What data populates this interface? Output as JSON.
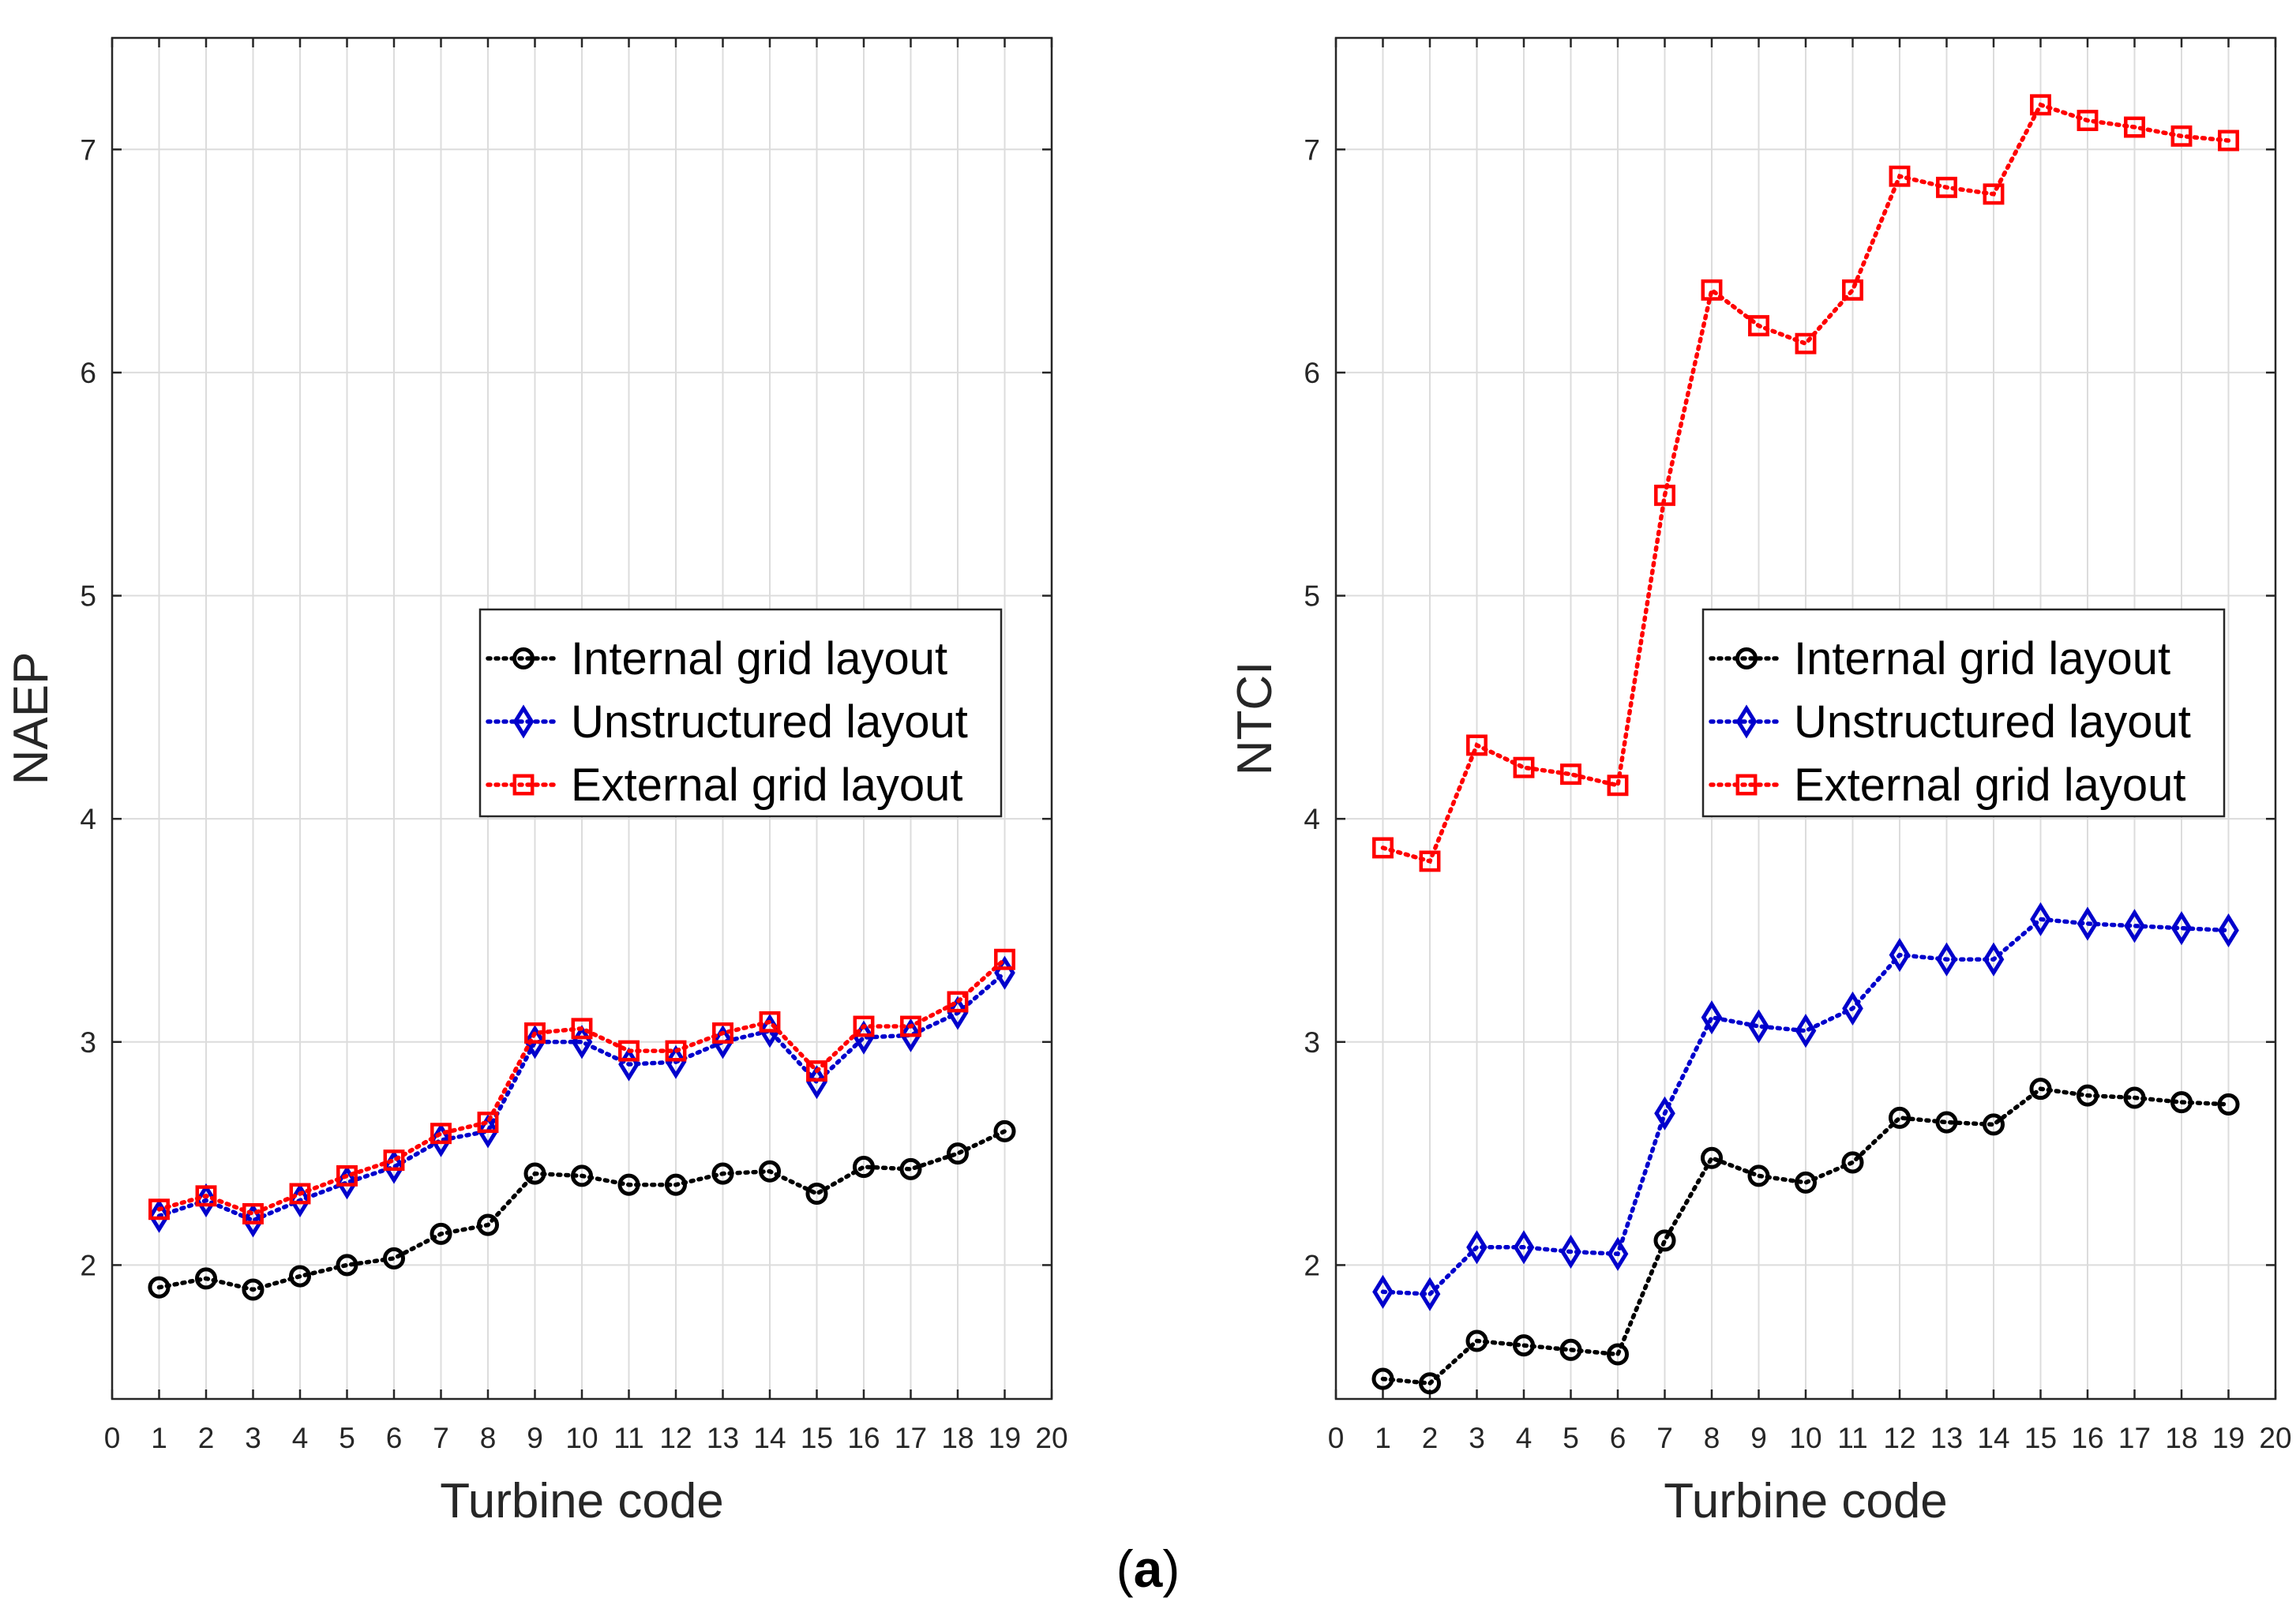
{
  "caption": {
    "open": "(",
    "letter": "a",
    "close": ")"
  },
  "colors": {
    "internal": "#000000",
    "unstructured": "#0000cc",
    "external": "#ff0000",
    "grid": "#dcdcdc",
    "axis": "#262626"
  },
  "chart_data": [
    {
      "type": "line",
      "xlabel": "Turbine code",
      "ylabel": "NAEP",
      "xlim": [
        0,
        20
      ],
      "ylim": [
        1.4,
        7.5
      ],
      "xticks": [
        0,
        1,
        2,
        3,
        4,
        5,
        6,
        7,
        8,
        9,
        10,
        11,
        12,
        13,
        14,
        15,
        16,
        17,
        18,
        19,
        20
      ],
      "yticks": [
        2,
        3,
        4,
        5,
        6,
        7
      ],
      "grid": true,
      "legend_position": "center-right",
      "x": [
        1,
        2,
        3,
        4,
        5,
        6,
        7,
        8,
        9,
        10,
        11,
        12,
        13,
        14,
        15,
        16,
        17,
        18,
        19
      ],
      "series": [
        {
          "name": "Internal grid layout",
          "marker": "circle",
          "color": "#000000",
          "values": [
            1.9,
            1.94,
            1.89,
            1.95,
            2.0,
            2.03,
            2.14,
            2.18,
            2.41,
            2.4,
            2.36,
            2.36,
            2.41,
            2.42,
            2.32,
            2.44,
            2.43,
            2.5,
            2.6
          ]
        },
        {
          "name": "Unstructured layout",
          "marker": "diamond",
          "color": "#0000cc",
          "values": [
            2.22,
            2.29,
            2.2,
            2.29,
            2.37,
            2.44,
            2.56,
            2.6,
            3.0,
            3.0,
            2.9,
            2.91,
            3.0,
            3.05,
            2.82,
            3.02,
            3.03,
            3.13,
            3.31
          ]
        },
        {
          "name": "External grid layout",
          "marker": "square",
          "color": "#ff0000",
          "values": [
            2.25,
            2.31,
            2.23,
            2.32,
            2.4,
            2.47,
            2.59,
            2.64,
            3.04,
            3.06,
            2.96,
            2.96,
            3.04,
            3.09,
            2.87,
            3.07,
            3.07,
            3.18,
            3.37
          ]
        }
      ]
    },
    {
      "type": "line",
      "xlabel": "Turbine code",
      "ylabel": "NTCI",
      "xlim": [
        0,
        20
      ],
      "ylim": [
        1.4,
        7.5
      ],
      "xticks": [
        0,
        1,
        2,
        3,
        4,
        5,
        6,
        7,
        8,
        9,
        10,
        11,
        12,
        13,
        14,
        15,
        16,
        17,
        18,
        19,
        20
      ],
      "yticks": [
        2,
        3,
        4,
        5,
        6,
        7
      ],
      "grid": true,
      "legend_position": "center-right",
      "x": [
        1,
        2,
        3,
        4,
        5,
        6,
        7,
        8,
        9,
        10,
        11,
        12,
        13,
        14,
        15,
        16,
        17,
        18,
        19
      ],
      "series": [
        {
          "name": "Internal grid layout",
          "marker": "circle",
          "color": "#000000",
          "values": [
            1.49,
            1.47,
            1.66,
            1.64,
            1.62,
            1.6,
            2.11,
            2.48,
            2.4,
            2.37,
            2.46,
            2.66,
            2.64,
            2.63,
            2.79,
            2.76,
            2.75,
            2.73,
            2.72
          ]
        },
        {
          "name": "Unstructured layout",
          "marker": "diamond",
          "color": "#0000cc",
          "values": [
            1.88,
            1.87,
            2.08,
            2.08,
            2.06,
            2.05,
            2.68,
            3.11,
            3.07,
            3.05,
            3.15,
            3.39,
            3.37,
            3.37,
            3.55,
            3.53,
            3.52,
            3.51,
            3.5
          ]
        },
        {
          "name": "External grid layout",
          "marker": "square",
          "color": "#ff0000",
          "values": [
            3.87,
            3.81,
            4.33,
            4.23,
            4.2,
            4.15,
            5.45,
            6.37,
            6.21,
            6.13,
            6.37,
            6.88,
            6.83,
            6.8,
            7.2,
            7.13,
            7.1,
            7.06,
            7.04
          ]
        }
      ]
    }
  ]
}
